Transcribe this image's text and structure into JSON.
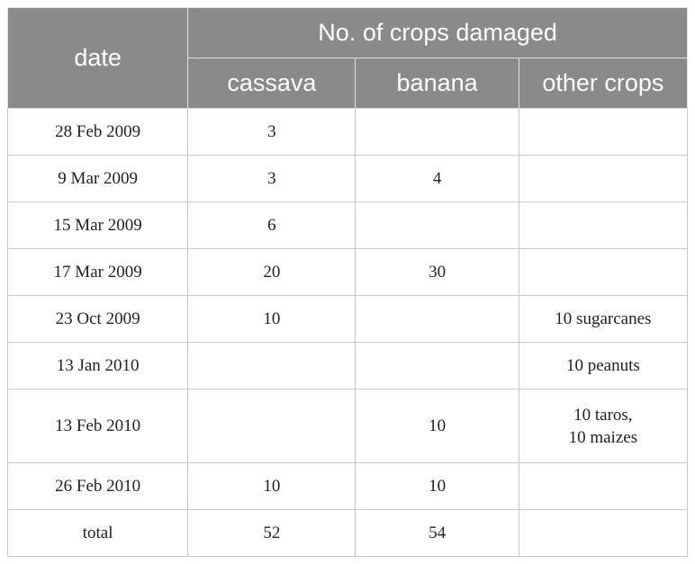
{
  "table": {
    "headers": {
      "date": "date",
      "group": "No. of crops damaged",
      "cassava": "cassava",
      "banana": "banana",
      "other": "other crops"
    },
    "rows": [
      {
        "date": "28 Feb 2009",
        "cassava": "3",
        "banana": "",
        "other": [
          ""
        ]
      },
      {
        "date": "9 Mar 2009",
        "cassava": "3",
        "banana": "4",
        "other": [
          ""
        ]
      },
      {
        "date": "15 Mar 2009",
        "cassava": "6",
        "banana": "",
        "other": [
          ""
        ]
      },
      {
        "date": "17 Mar 2009",
        "cassava": "20",
        "banana": "30",
        "other": [
          ""
        ]
      },
      {
        "date": "23 Oct 2009",
        "cassava": "10",
        "banana": "",
        "other": [
          "10 sugarcanes"
        ]
      },
      {
        "date": "13 Jan 2010",
        "cassava": "",
        "banana": "",
        "other": [
          "10 peanuts"
        ]
      },
      {
        "date": "13 Feb 2010",
        "cassava": "",
        "banana": "10",
        "other": [
          "10 taros,",
          "10 maizes"
        ]
      },
      {
        "date": "26 Feb 2010",
        "cassava": "10",
        "banana": "10",
        "other": [
          ""
        ]
      },
      {
        "date": "total",
        "cassava": "52",
        "banana": "54",
        "other": [
          ""
        ]
      }
    ]
  }
}
